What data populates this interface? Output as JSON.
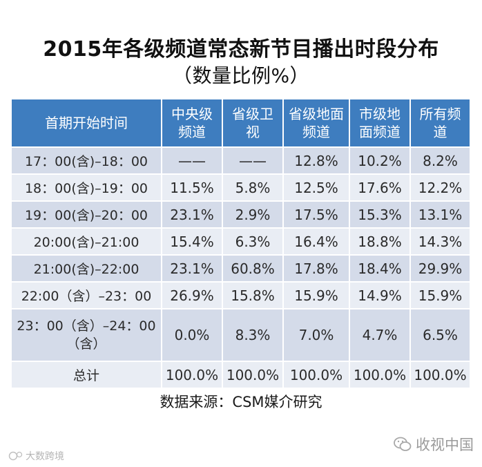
{
  "title_line1": "2015年各级频道常态新节目播出时段分布",
  "title_line2": "（数量比例%）",
  "table": {
    "headers": [
      "首期开始时间",
      "中央级频道",
      "省级卫视",
      "省级地面频道",
      "市级地面频道",
      "所有频道"
    ],
    "rows": [
      [
        "17：00(含)–18：00",
        "——",
        "——",
        "12.8%",
        "10.2%",
        "8.2%"
      ],
      [
        "18：00(含)–19：00",
        "11.5%",
        "5.8%",
        "12.5%",
        "17.6%",
        "12.2%"
      ],
      [
        "19：00(含)–20：00",
        "23.1%",
        "2.9%",
        "17.5%",
        "15.3%",
        "13.1%"
      ],
      [
        "20:00(含)–21:00",
        "15.4%",
        "6.3%",
        "16.4%",
        "18.8%",
        "14.3%"
      ],
      [
        "21:00(含)–22:00",
        "23.1%",
        "60.8%",
        "17.8%",
        "18.4%",
        "29.9%"
      ],
      [
        "22:00（含）–23：00",
        "26.9%",
        "15.8%",
        "15.9%",
        "14.9%",
        "15.9%"
      ],
      [
        "23：00（含）–24：00（含）",
        "0.0%",
        "8.3%",
        "7.0%",
        "4.7%",
        "6.5%"
      ],
      [
        "总计",
        "100.0%",
        "100.0%",
        "100.0%",
        "100.0%",
        "100.0%"
      ]
    ]
  },
  "source": "数据来源：CSM媒介研究",
  "watermark_right": "收视中国",
  "watermark_left": "大数跨境",
  "colors": {
    "header_bg": "#3e7dbf",
    "row_odd_bg": "#d4dbe9",
    "row_even_bg": "#e9edf4"
  }
}
